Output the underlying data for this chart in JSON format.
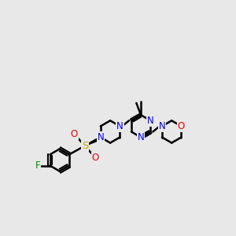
{
  "background_color": "#e8e8e8",
  "bond_color": "#000000",
  "bond_width": 1.8,
  "atom_colors": {
    "N": "#0000ee",
    "O": "#ee0000",
    "F": "#008800",
    "S": "#ccaa00",
    "C": "#000000"
  },
  "font_size": 8.5,
  "figsize": [
    3.0,
    3.0
  ],
  "dpi": 100
}
